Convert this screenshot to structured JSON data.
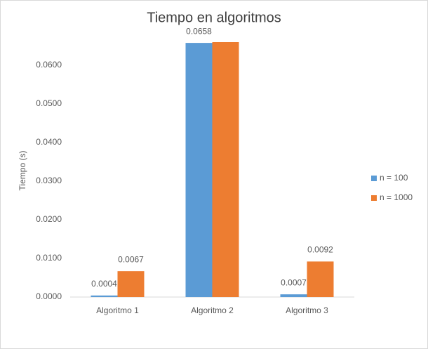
{
  "chart_data": {
    "type": "bar",
    "title": "Tiempo en algoritmos",
    "y_label": "Tiempo (s)",
    "categories": [
      "Algoritmo 1",
      "Algoritmo 2",
      "Algoritmo 3"
    ],
    "series": [
      {
        "name": "n = 100",
        "color": "#5b9bd5",
        "values": [
          0.0004,
          0.0658,
          0.0007
        ],
        "value_labels": [
          "0.0004",
          "0.0658",
          "0.0007"
        ]
      },
      {
        "name": "n = 1000",
        "color": "#ed7d31",
        "values": [
          0.0067,
          0.066,
          0.0092
        ],
        "value_labels": [
          "0.0067",
          null,
          "0.0092"
        ]
      }
    ],
    "ylim": [
      0,
      0.07
    ],
    "yticks": [
      {
        "value": 0,
        "label": "0.0000"
      },
      {
        "value": 0.01,
        "label": "0.0100"
      },
      {
        "value": 0.02,
        "label": "0.0200"
      },
      {
        "value": 0.03,
        "label": "0.0300"
      },
      {
        "value": 0.04,
        "label": "0.0400"
      },
      {
        "value": 0.05,
        "label": "0.0500"
      },
      {
        "value": 0.06,
        "label": "0.0600"
      }
    ],
    "legend": "right"
  }
}
